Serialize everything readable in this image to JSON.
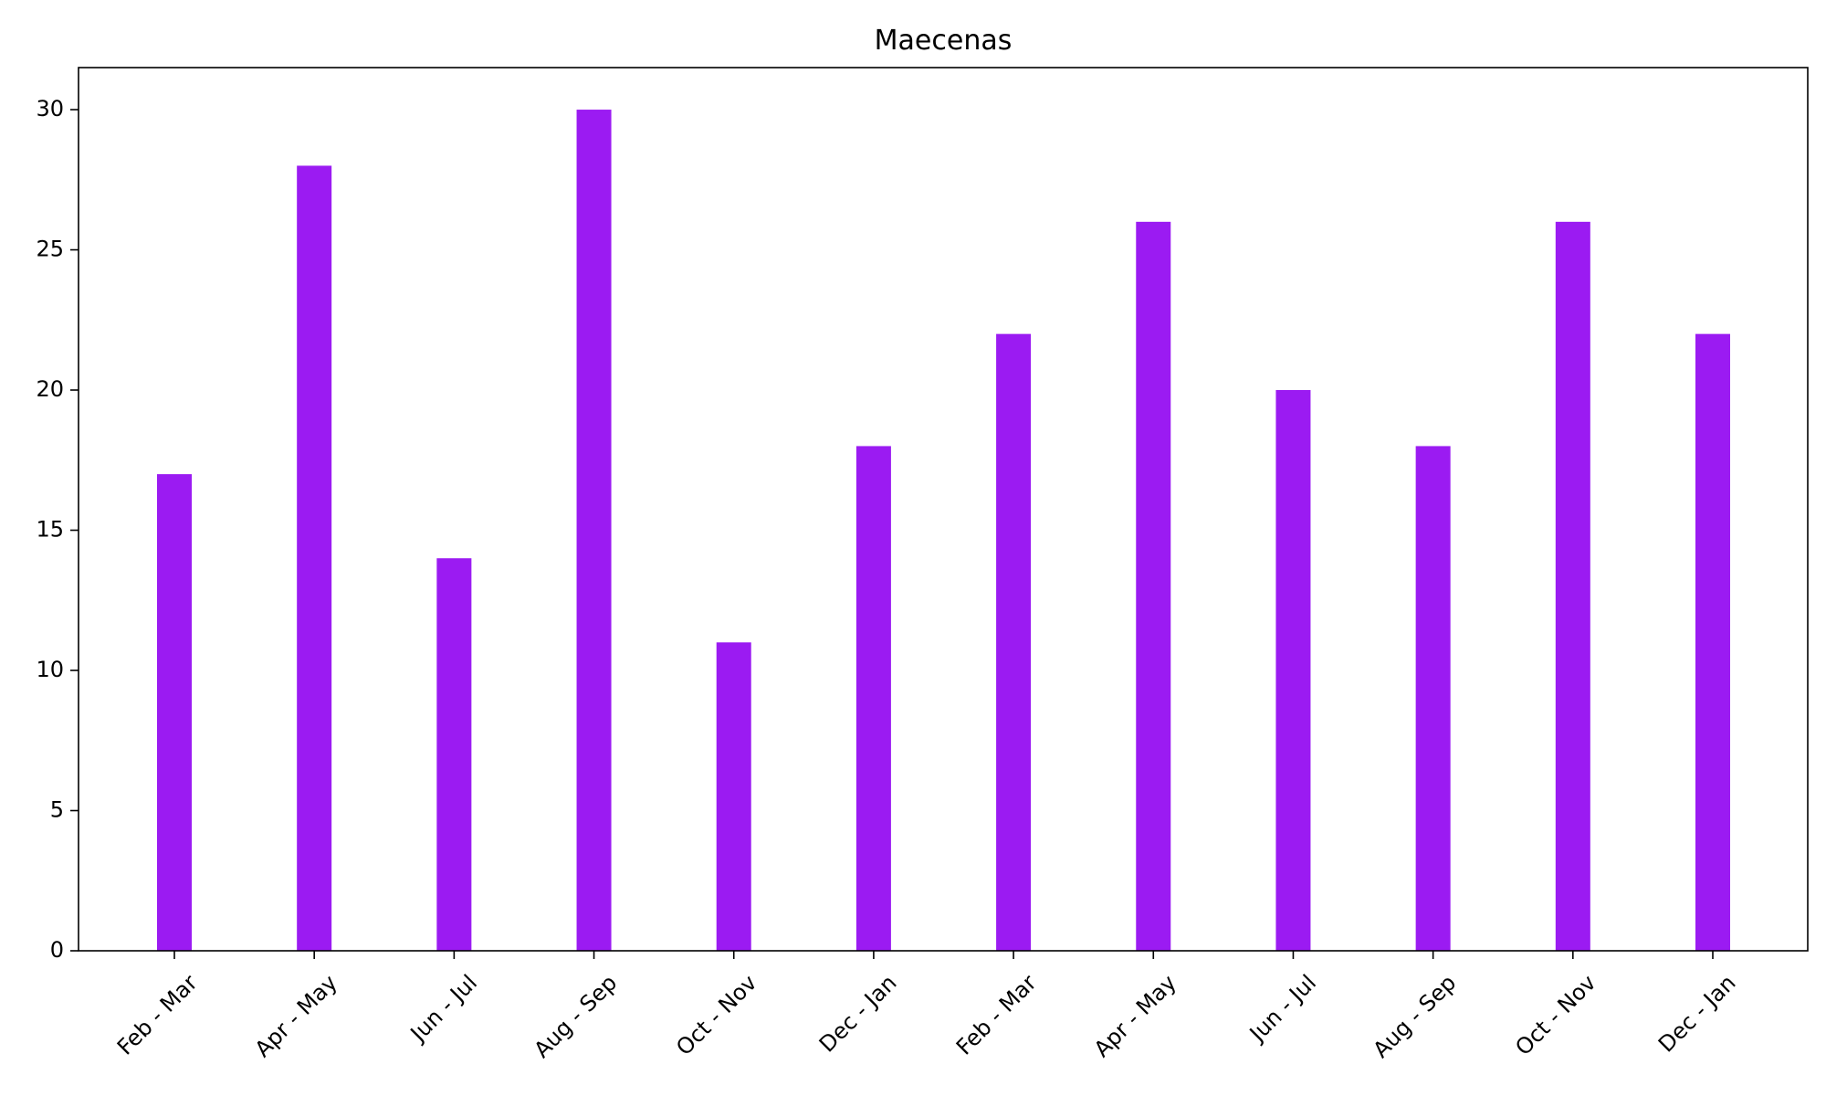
{
  "chart_data": {
    "type": "bar",
    "title": "Maecenas",
    "xlabel": "",
    "ylabel": "",
    "categories": [
      "Feb - Mar",
      "Apr - May",
      "Jun - Jul",
      "Aug - Sep",
      "Oct - Nov",
      "Dec - Jan",
      "Feb - Mar",
      "Apr - May",
      "Jun - Jul",
      "Aug - Sep",
      "Oct - Nov",
      "Dec - Jan"
    ],
    "values": [
      17,
      28,
      14,
      30,
      11,
      18,
      22,
      26,
      20,
      18,
      26,
      22
    ],
    "ylim": [
      0,
      31.5
    ],
    "yticks": [
      0,
      5,
      10,
      15,
      20,
      25,
      30
    ],
    "bar_color": "#9b1bf2",
    "grid": false,
    "legend": "none"
  }
}
